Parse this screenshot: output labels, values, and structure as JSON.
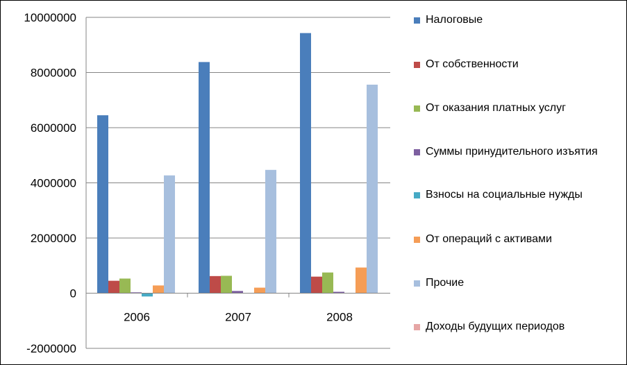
{
  "chart_data": {
    "type": "bar",
    "categories": [
      "2006",
      "2007",
      "2008"
    ],
    "ylim": [
      -2000000,
      10000000
    ],
    "yticks": [
      -2000000,
      0,
      2000000,
      4000000,
      6000000,
      8000000,
      10000000
    ],
    "ytick_labels": [
      "-2000000",
      "0",
      "2000000",
      "4000000",
      "6000000",
      "8000000",
      "10000000"
    ],
    "grid": true,
    "legend_position": "right",
    "series": [
      {
        "name": "Налоговые",
        "color": "#4A7EBB",
        "values": [
          6450000,
          8380000,
          9430000
        ]
      },
      {
        "name": "От собственности",
        "color": "#BE4B48",
        "values": [
          450000,
          620000,
          600000
        ]
      },
      {
        "name": "От оказания платных услуг",
        "color": "#98B954",
        "values": [
          530000,
          630000,
          750000
        ]
      },
      {
        "name": "Суммы принудительного изъятия",
        "color": "#7D5FA0",
        "values": [
          30000,
          80000,
          50000
        ]
      },
      {
        "name": "Взносы на социальные нужды",
        "color": "#46AAC5",
        "values": [
          -120000,
          0,
          0
        ]
      },
      {
        "name": "От операций с активами",
        "color": "#F59D56",
        "values": [
          280000,
          200000,
          930000
        ]
      },
      {
        "name": "Прочие",
        "color": "#A7BFDE",
        "values": [
          4270000,
          4470000,
          7560000
        ]
      },
      {
        "name": "Доходы будущих периодов",
        "color": "#E6A6A5",
        "values": [
          0,
          0,
          0
        ]
      }
    ]
  }
}
